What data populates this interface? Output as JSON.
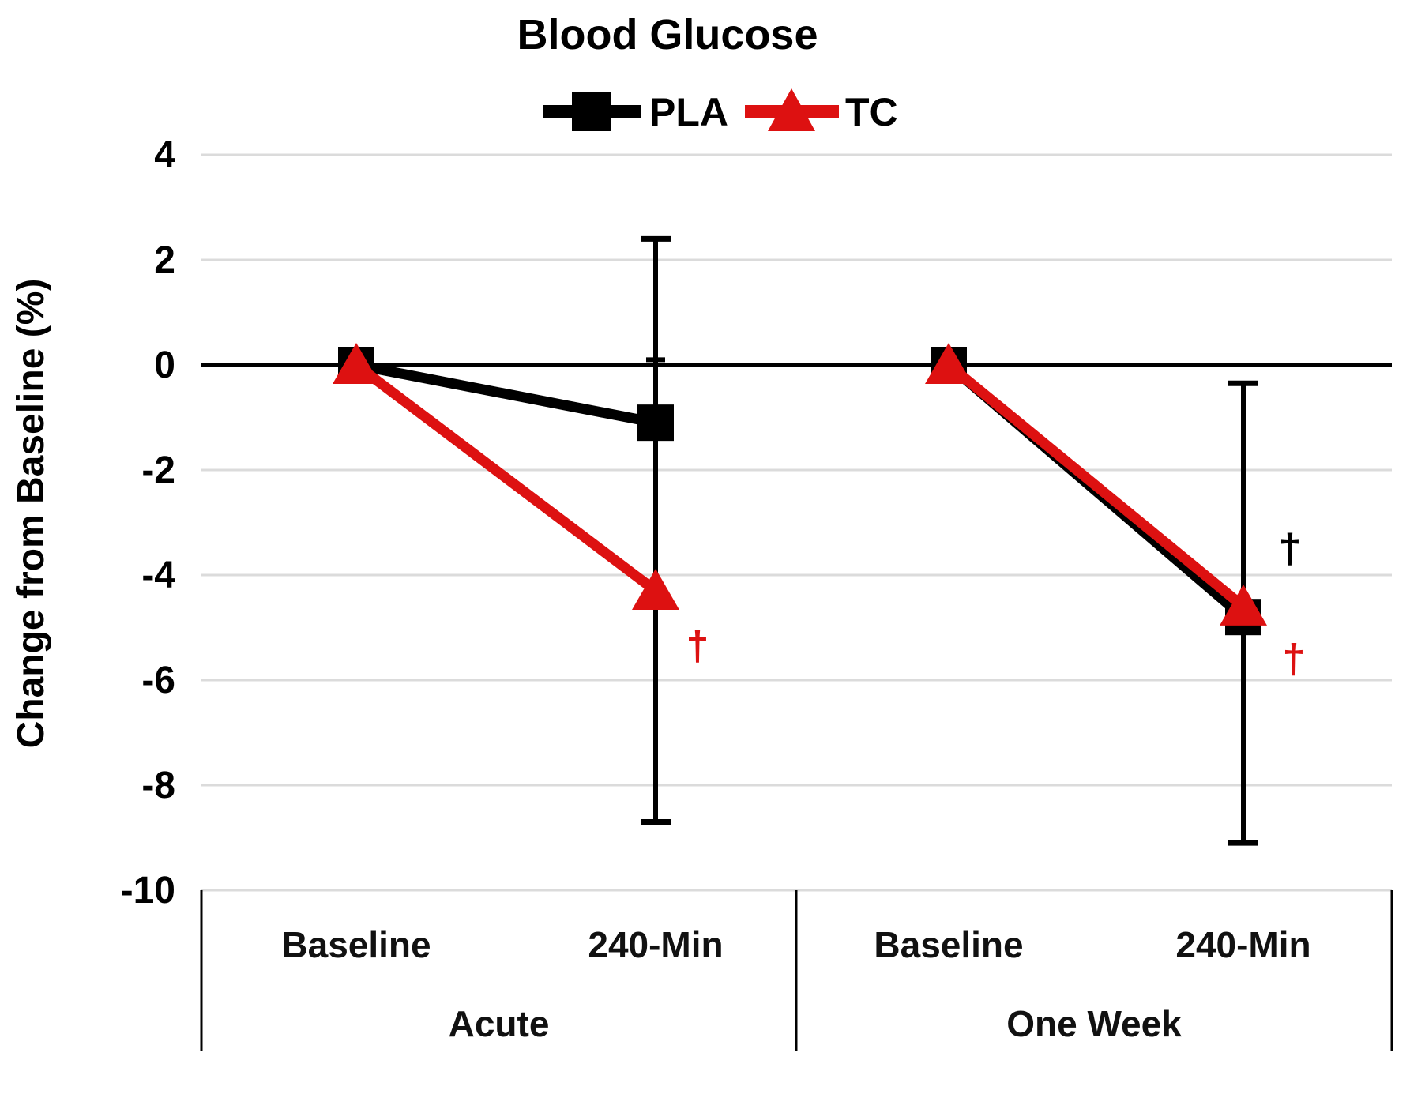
{
  "chart_data": {
    "type": "line",
    "title": "Blood Glucose",
    "y_axis": {
      "label": "Change from Baseline (%)",
      "ticks": [
        4,
        2,
        0,
        -2,
        -4,
        -6,
        -8,
        -10
      ],
      "ylim": [
        -10,
        4
      ],
      "grid": true,
      "grid_color": "#DBDBDB",
      "zero_line_color": "#000000"
    },
    "x_axis": {
      "groups": [
        {
          "label": "Acute",
          "categories": [
            "Baseline",
            "240-Min"
          ]
        },
        {
          "label": "One Week",
          "categories": [
            "Baseline",
            "240-Min"
          ]
        }
      ]
    },
    "categories": [
      "Acute Baseline",
      "Acute 240-Min",
      "One Week Baseline",
      "One Week 240-Min"
    ],
    "series": [
      {
        "name": "PLA",
        "marker": "square",
        "color": "#000000",
        "values": [
          0,
          -1.1,
          0,
          -4.8
        ]
      },
      {
        "name": "TC",
        "marker": "triangle",
        "color": "#DD1111",
        "values": [
          0,
          -4.3,
          0,
          -4.6
        ]
      }
    ],
    "segments": [
      [
        0,
        1
      ],
      [
        2,
        3
      ]
    ],
    "error_bars": [
      {
        "category_index": 1,
        "top": 2.4,
        "bottom": -8.7,
        "extra_cap_at": 0.1
      },
      {
        "category_index": 3,
        "top": -0.35,
        "bottom": -9.1
      }
    ],
    "annotations": [
      {
        "text": "†",
        "color": "#DD1111",
        "category_index": 1,
        "value": -5.35
      },
      {
        "text": "†",
        "color": "#000000",
        "category_index": 3,
        "value": -3.5
      },
      {
        "text": "†",
        "color": "#DD1111",
        "category_index": 3,
        "value": -5.6
      }
    ],
    "legend_position": "top"
  }
}
